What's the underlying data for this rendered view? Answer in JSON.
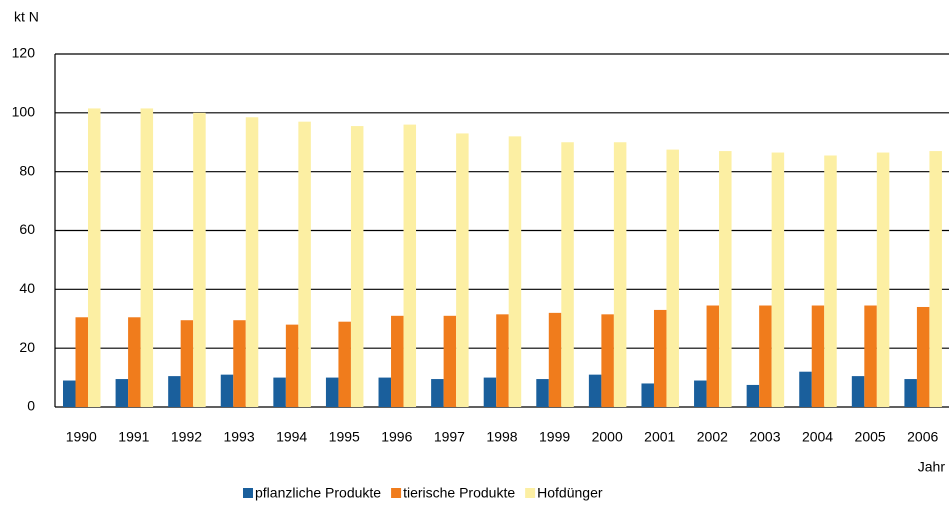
{
  "chart_data": {
    "type": "bar",
    "y_label": "kt N",
    "x_label": "Jahr",
    "categories": [
      "1990",
      "1991",
      "1992",
      "1993",
      "1994",
      "1995",
      "1996",
      "1997",
      "1998",
      "1999",
      "2000",
      "2001",
      "2002",
      "2003",
      "2004",
      "2005",
      "2006"
    ],
    "series": [
      {
        "name": "pflanzliche Produkte",
        "color": "#1a5f9c",
        "values": [
          9,
          9.5,
          10.5,
          11,
          10,
          10,
          10,
          9.5,
          10,
          9.5,
          11,
          8,
          9,
          7.5,
          12,
          10.5,
          9.5
        ]
      },
      {
        "name": "tierische Produkte",
        "color": "#f07c1c",
        "values": [
          30.5,
          30.5,
          29.5,
          29.5,
          28,
          29,
          31,
          31,
          31.5,
          32,
          31.5,
          33,
          34.5,
          34.5,
          34.5,
          34.5,
          34
        ]
      },
      {
        "name": "Hofdünger",
        "color": "#fcefa3",
        "values": [
          101.5,
          101.5,
          100,
          98.5,
          97,
          95.5,
          96,
          93,
          92,
          90,
          90,
          87.5,
          87,
          86.5,
          85.5,
          86.5,
          87
        ]
      }
    ],
    "ylim": [
      0,
      120
    ],
    "yticks": [
      0,
      20,
      40,
      60,
      80,
      100,
      120
    ],
    "grid": true,
    "legend": "bottom"
  }
}
